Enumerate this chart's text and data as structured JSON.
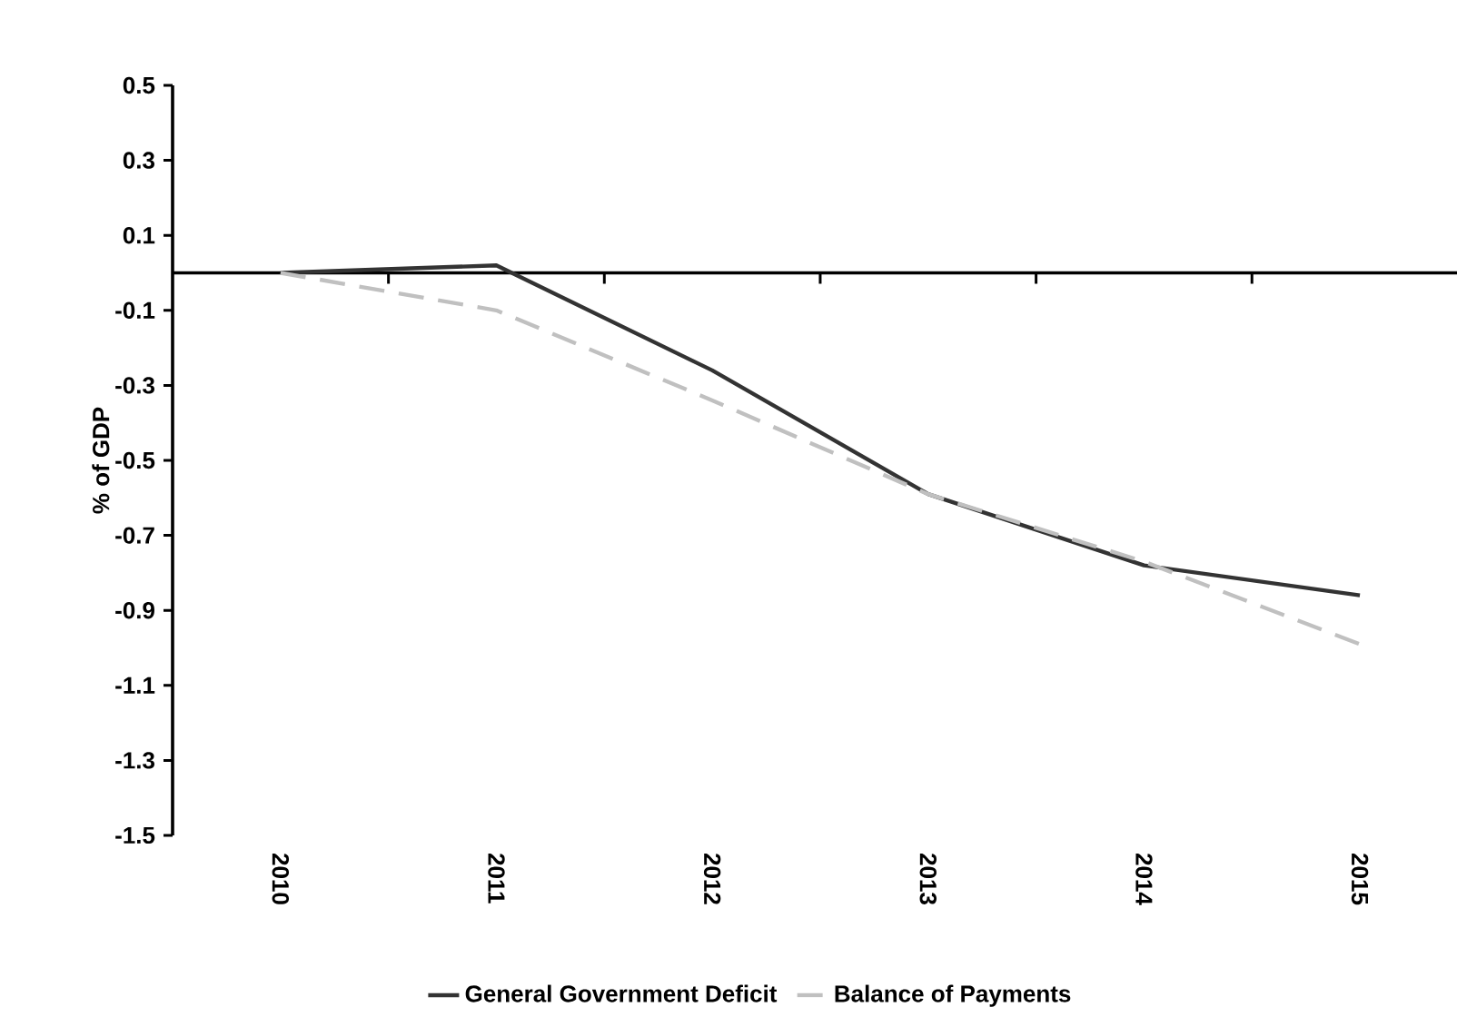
{
  "chart_data": {
    "type": "line",
    "ylabel": "% of GDP",
    "categories": [
      "2010",
      "2011",
      "2012",
      "2013",
      "2014",
      "2015"
    ],
    "series": [
      {
        "name": "General Government Deficit",
        "color": "#333333",
        "line_style": "solid",
        "values": [
          0.0,
          0.02,
          -0.26,
          -0.59,
          -0.78,
          -0.86
        ]
      },
      {
        "name": "Balance of Payments",
        "color": "#c0c0c0",
        "line_style": "dashed",
        "values": [
          0.0,
          -0.1,
          -0.34,
          -0.59,
          -0.77,
          -0.99
        ]
      }
    ],
    "ylim": [
      -1.5,
      0.5
    ],
    "yticks": [
      -1.5,
      -1.3,
      -1.1,
      -0.9,
      -0.7,
      -0.5,
      -0.3,
      -0.1,
      0.1,
      0.3,
      0.5
    ],
    "grid": false,
    "legend": "bottom",
    "marker": "none"
  }
}
